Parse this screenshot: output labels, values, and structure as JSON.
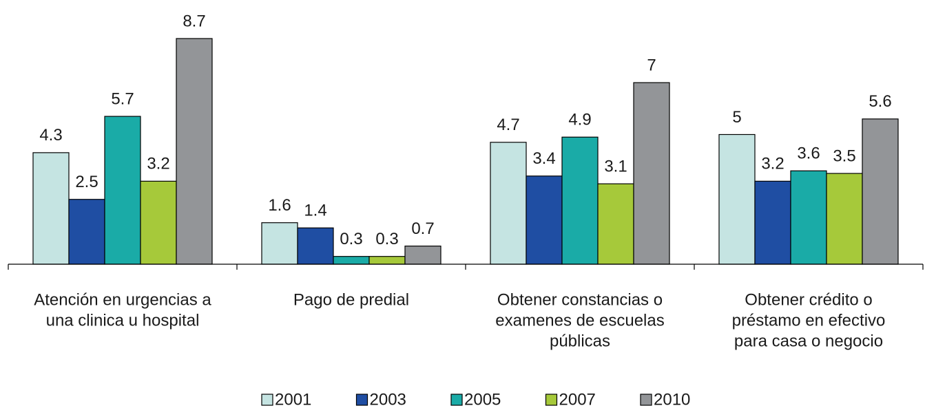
{
  "chart_data": {
    "type": "bar",
    "categories": [
      [
        "Atención en urgencias a",
        "una clinica u hospital"
      ],
      [
        "Pago de predial"
      ],
      [
        "Obtener constancias o",
        "examenes de escuelas",
        "públicas"
      ],
      [
        "Obtener crédito o",
        "préstamo en efectivo",
        "para casa o negocio"
      ]
    ],
    "series": [
      {
        "name": "2001",
        "color": "#c5e4e2",
        "values": [
          4.3,
          1.6,
          4.7,
          5
        ]
      },
      {
        "name": "2003",
        "color": "#1f4ea3",
        "values": [
          2.5,
          1.4,
          3.4,
          3.2
        ]
      },
      {
        "name": "2005",
        "color": "#1aaba7",
        "values": [
          5.7,
          0.3,
          4.9,
          3.6
        ]
      },
      {
        "name": "2007",
        "color": "#a6c93a",
        "values": [
          3.2,
          0.3,
          3.1,
          3.5
        ]
      },
      {
        "name": "2010",
        "color": "#939598",
        "values": [
          8.7,
          0.7,
          7,
          5.6
        ]
      }
    ],
    "legend": "bottom"
  }
}
